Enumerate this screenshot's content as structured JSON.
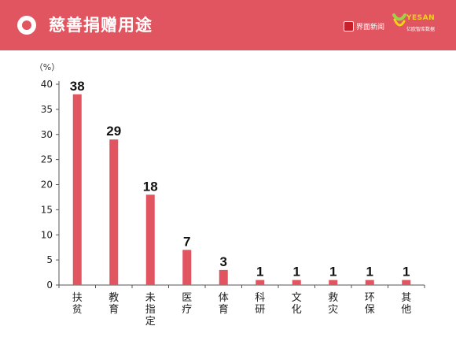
{
  "header": {
    "title": "慈善捐赠用途",
    "brand_primary": "界面新闻",
    "brand_secondary": "YESAN",
    "brand_secondary_sub": "亿欧智库数据",
    "accent_color": "#e05560"
  },
  "chart_data": {
    "type": "bar",
    "title": "",
    "xlabel": "",
    "ylabel": "（%）",
    "ylim": [
      0,
      40
    ],
    "yticks": [
      0,
      5,
      10,
      15,
      20,
      25,
      30,
      35,
      40
    ],
    "grid": false,
    "bar_color": "#e05560",
    "categories": [
      "扶贫",
      "教育",
      "未指定",
      "医疗",
      "体育",
      "科研",
      "文化",
      "救灾",
      "环保",
      "其他"
    ],
    "values": [
      38,
      29,
      18,
      7,
      3,
      1,
      1,
      1,
      1,
      1
    ],
    "value_labels": [
      "38",
      "29",
      "18",
      "7",
      "3",
      "1",
      "1",
      "1",
      "1",
      "1"
    ]
  }
}
